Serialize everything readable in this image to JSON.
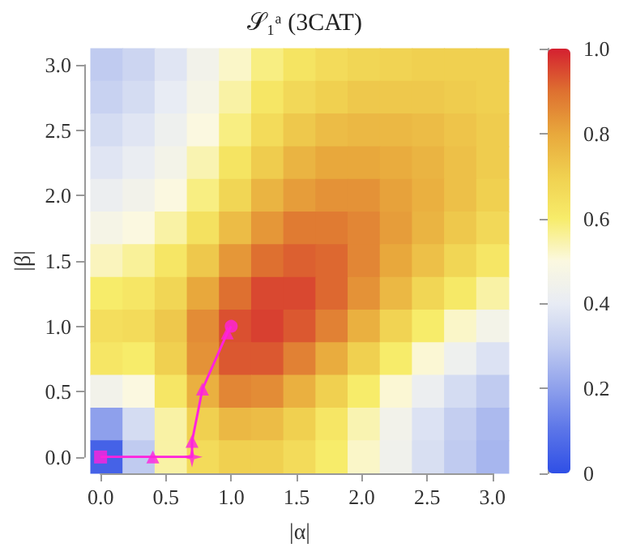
{
  "chart_data": [
    {
      "type": "heatmap",
      "title": "𝒮₁ᵃ (3CAT)",
      "xlabel": "|α|",
      "ylabel": "|β|",
      "tick_labels": false,
      "categories": [
        "0.0",
        null,
        "0.5",
        null,
        "1.0",
        null,
        "1.5",
        null,
        "2.0",
        null,
        "2.5",
        null,
        "3.0"
      ],
      "y_categories": [
        "3.0",
        null,
        "2.5",
        null,
        "2.0",
        null,
        "1.5",
        null,
        "1.0",
        null,
        "0.5",
        null,
        "0.0"
      ],
      "cells": [
        [
          0.3,
          0.33,
          0.38,
          0.45,
          0.52,
          0.58,
          0.63,
          0.66,
          0.68,
          0.69,
          0.7,
          0.7,
          0.7
        ],
        [
          0.32,
          0.35,
          0.4,
          0.47,
          0.55,
          0.62,
          0.67,
          0.7,
          0.72,
          0.72,
          0.72,
          0.71,
          0.7
        ],
        [
          0.35,
          0.38,
          0.43,
          0.5,
          0.58,
          0.66,
          0.72,
          0.75,
          0.76,
          0.76,
          0.75,
          0.73,
          0.71
        ],
        [
          0.38,
          0.41,
          0.46,
          0.54,
          0.63,
          0.71,
          0.77,
          0.8,
          0.8,
          0.79,
          0.77,
          0.74,
          0.71
        ],
        [
          0.42,
          0.45,
          0.5,
          0.58,
          0.68,
          0.77,
          0.82,
          0.84,
          0.84,
          0.81,
          0.78,
          0.74,
          0.7
        ],
        [
          0.47,
          0.5,
          0.55,
          0.64,
          0.75,
          0.83,
          0.88,
          0.88,
          0.86,
          0.82,
          0.77,
          0.72,
          0.67
        ],
        [
          0.53,
          0.56,
          0.62,
          0.72,
          0.83,
          0.9,
          0.92,
          0.91,
          0.86,
          0.8,
          0.74,
          0.68,
          0.62
        ],
        [
          0.6,
          0.62,
          0.68,
          0.8,
          0.9,
          0.95,
          0.95,
          0.91,
          0.84,
          0.76,
          0.68,
          0.61,
          0.55
        ],
        [
          0.65,
          0.66,
          0.72,
          0.85,
          0.94,
          0.96,
          0.93,
          0.87,
          0.78,
          0.69,
          0.6,
          0.52,
          0.46
        ],
        [
          0.62,
          0.6,
          0.7,
          0.84,
          0.93,
          0.93,
          0.87,
          0.79,
          0.7,
          0.6,
          0.51,
          0.43,
          0.37
        ],
        [
          0.45,
          0.5,
          0.62,
          0.78,
          0.86,
          0.85,
          0.78,
          0.7,
          0.6,
          0.51,
          0.42,
          0.35,
          0.3
        ],
        [
          0.2,
          0.35,
          0.55,
          0.7,
          0.76,
          0.75,
          0.7,
          0.62,
          0.54,
          0.45,
          0.37,
          0.31,
          0.26
        ],
        [
          0.05,
          0.3,
          0.55,
          0.66,
          0.7,
          0.7,
          0.66,
          0.6,
          0.52,
          0.44,
          0.36,
          0.3,
          0.25
        ]
      ],
      "clim": [
        0,
        1
      ],
      "cticks": [
        0,
        0.2,
        0.4,
        0.6,
        0.8,
        {
          "value": 1,
          "label": "1.0"
        }
      ],
      "colors": [
        "#2f4fe6",
        "#5a74e8",
        "#8ea0ec",
        "#c0cbf0",
        "#e8ecf4",
        "#fbf8e0",
        "#f7ec6a",
        "#f0d050",
        "#e8a83c",
        "#de7030",
        "#d42030"
      ]
    },
    {
      "type": "line",
      "xlim": [
        0,
        3
      ],
      "ylim": [
        0,
        3
      ],
      "xticks": [
        {
          "value": 0,
          "label": "0.0"
        },
        0.5,
        {
          "value": 1,
          "label": "1.0"
        },
        1.5,
        {
          "value": 2,
          "label": "2.0"
        },
        2.5,
        {
          "value": 3,
          "label": "3.0"
        }
      ],
      "yticks": [
        {
          "value": 0,
          "label": "0.0"
        },
        0.5,
        {
          "value": 1,
          "label": "1.0"
        },
        1.5,
        {
          "value": 2,
          "label": "2.0"
        },
        2.5,
        {
          "value": 3,
          "label": "3.0"
        }
      ],
      "series": [
        {
          "type": "line",
          "color": "#ff22dd",
          "marker": "none",
          "x": [
            0,
            0.4,
            0.7,
            0.7,
            0.78,
            0.97,
            1
          ],
          "values": [
            0,
            0,
            0,
            0.12,
            0.52,
            0.95,
            1
          ]
        },
        {
          "type": "scatter",
          "color": "#ff22dd",
          "marker": "square",
          "x": [
            0
          ],
          "values": [
            0
          ]
        },
        {
          "type": "scatter",
          "color": "#ff22dd",
          "marker": "triangle",
          "x": [
            0.4,
            0.7,
            0.78,
            0.97
          ],
          "values": [
            0,
            0.12,
            0.52,
            0.95
          ]
        },
        {
          "type": "scatter",
          "color": "#ff22dd",
          "marker": "star",
          "x": [
            0.7
          ],
          "values": [
            0
          ]
        },
        {
          "type": "scatter",
          "color": "#ff22dd",
          "marker": "circle",
          "x": [
            1
          ],
          "values": [
            1
          ]
        }
      ]
    }
  ]
}
